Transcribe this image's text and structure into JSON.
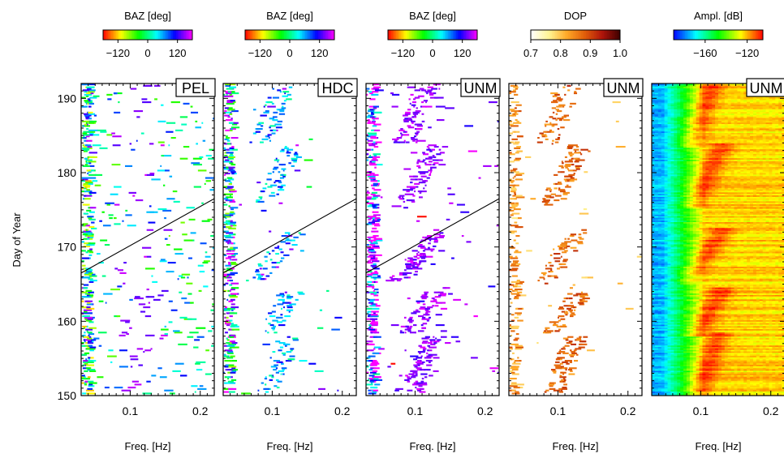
{
  "chart_data": {
    "type": "heatmap",
    "ylabel": "Day of Year",
    "xlabel": "Freq. [Hz]",
    "xlim": [
      0.03,
      0.22
    ],
    "ylim": [
      150,
      192
    ],
    "x_ticks": [
      0.1,
      0.2
    ],
    "x_tick_labels": [
      "0.1",
      "0.2"
    ],
    "y_ticks": [
      150,
      160,
      170,
      180,
      190
    ],
    "y_tick_labels": [
      "150",
      "160",
      "170",
      "180",
      "190"
    ],
    "trend_line": {
      "freq": [
        0.03,
        0.22
      ],
      "day": [
        166.5,
        176.5
      ]
    },
    "panels": [
      {
        "station": "PEL",
        "quantity": "baz",
        "colorbar": {
          "label": "BAZ [deg]",
          "ticks": [
            -120,
            0,
            120
          ],
          "tick_labels": [
            "−120",
            "0",
            "120"
          ],
          "range": [
            -180,
            180
          ]
        },
        "show_trend": true,
        "activity": 0.52,
        "baz_center": 20,
        "baz_spread": 90,
        "marine_gain": 0.15
      },
      {
        "station": "HDC",
        "quantity": "baz",
        "colorbar": {
          "label": "BAZ [deg]",
          "ticks": [
            -120,
            0,
            120
          ],
          "tick_labels": [
            "−120",
            "0",
            "120"
          ],
          "range": [
            -180,
            180
          ]
        },
        "show_trend": true,
        "activity": 0.18,
        "baz_center": 60,
        "baz_spread": 120,
        "marine_gain": 0.35
      },
      {
        "station": "UNM",
        "quantity": "baz",
        "colorbar": {
          "label": "BAZ [deg]",
          "ticks": [
            -120,
            0,
            120
          ],
          "tick_labels": [
            "−120",
            "0",
            "120"
          ],
          "range": [
            -180,
            180
          ]
        },
        "show_trend": true,
        "activity": 0.42,
        "baz_center": 150,
        "baz_spread": 35,
        "marine_gain": 0.65
      },
      {
        "station": "UNM",
        "quantity": "dop",
        "colorbar": {
          "label": "DOP",
          "ticks": [
            0.7,
            0.8,
            0.9,
            1.0
          ],
          "tick_labels": [
            "0.7",
            "0.8",
            "0.9",
            "1.0"
          ],
          "range": [
            0.7,
            1.0
          ]
        },
        "show_trend": false,
        "activity": 0.22,
        "marine_gain": 0.55
      },
      {
        "station": "UNM",
        "quantity": "amplitude",
        "colorbar": {
          "label": "Ampl. [dB]",
          "ticks": [
            -160,
            -120
          ],
          "tick_labels": [
            "−160",
            "−120"
          ],
          "range": [
            -190,
            -105
          ]
        },
        "show_trend": false,
        "amp_min_db": -175,
        "amp_max_db": -115
      }
    ],
    "storm_events": [
      {
        "day_start": 150.5,
        "day_end": 158.0,
        "freq_start": 0.095,
        "freq_end": 0.125
      },
      {
        "day_start": 158.5,
        "day_end": 164.0,
        "freq_start": 0.095,
        "freq_end": 0.13
      },
      {
        "day_start": 165.5,
        "day_end": 172.0,
        "freq_start": 0.08,
        "freq_end": 0.13
      },
      {
        "day_start": 176.0,
        "day_end": 183.5,
        "freq_start": 0.09,
        "freq_end": 0.13
      },
      {
        "day_start": 184.0,
        "day_end": 191.5,
        "freq_start": 0.085,
        "freq_end": 0.115
      }
    ]
  }
}
